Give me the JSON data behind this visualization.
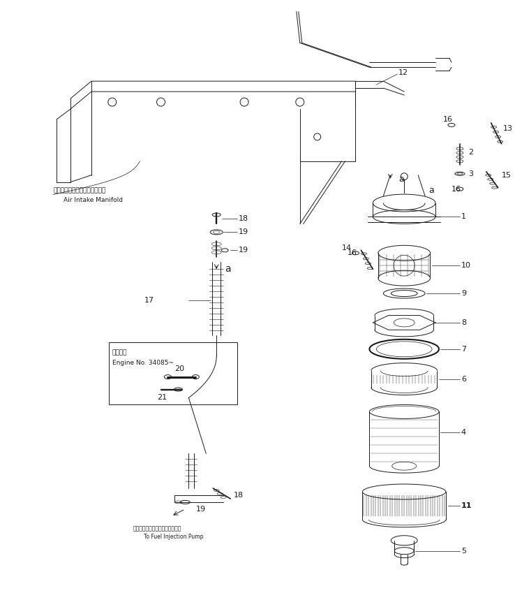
{
  "bg_color": "#ffffff",
  "line_color": "#1a1a1a",
  "fig_width": 7.38,
  "fig_height": 8.69,
  "dpi": 100,
  "labels": {
    "air_intake_jp": "エアーインテークマニホールド",
    "air_intake_en": "Air Intake Manifold",
    "fuel_pump_jp": "フェルインジェクションポンプへ",
    "fuel_pump_en": "To Fuel Injection Pump",
    "engine_jp": "適用号機",
    "engine_en": "Engine No. 34085~"
  }
}
